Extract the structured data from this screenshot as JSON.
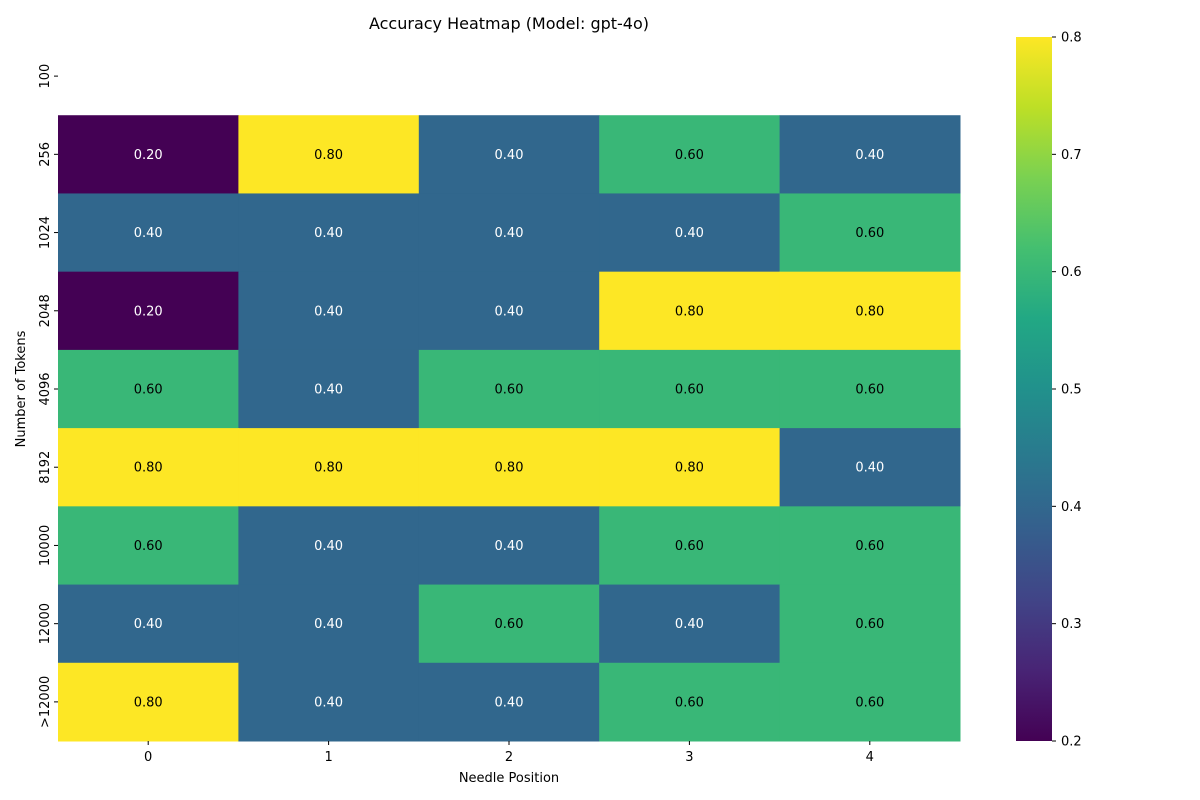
{
  "chart_data": {
    "type": "heatmap",
    "title": "Accuracy Heatmap (Model: gpt-4o)",
    "xlabel": "Needle Position",
    "ylabel": "Number of Tokens",
    "x_categories": [
      "0",
      "1",
      "2",
      "3",
      "4"
    ],
    "y_categories": [
      "100",
      "256",
      "1024",
      "2048",
      "4096",
      "8192",
      "10000",
      "12000",
      ">12000"
    ],
    "values": [
      [
        null,
        null,
        null,
        null,
        null
      ],
      [
        0.2,
        0.8,
        0.4,
        0.6,
        0.4
      ],
      [
        0.4,
        0.4,
        0.4,
        0.4,
        0.6
      ],
      [
        0.2,
        0.4,
        0.4,
        0.8,
        0.8
      ],
      [
        0.6,
        0.4,
        0.6,
        0.6,
        0.6
      ],
      [
        0.8,
        0.8,
        0.8,
        0.8,
        0.4
      ],
      [
        0.6,
        0.4,
        0.4,
        0.6,
        0.6
      ],
      [
        0.4,
        0.4,
        0.6,
        0.4,
        0.6
      ],
      [
        0.8,
        0.4,
        0.4,
        0.6,
        0.6
      ]
    ],
    "annotation_format": "0.00",
    "colormap": "viridis",
    "vmin": 0.2,
    "vmax": 0.8,
    "colorbar_ticks": [
      "0.2",
      "0.3",
      "0.4",
      "0.5",
      "0.6",
      "0.7",
      "0.8"
    ],
    "grid": false,
    "legend": "colorbar-right"
  }
}
